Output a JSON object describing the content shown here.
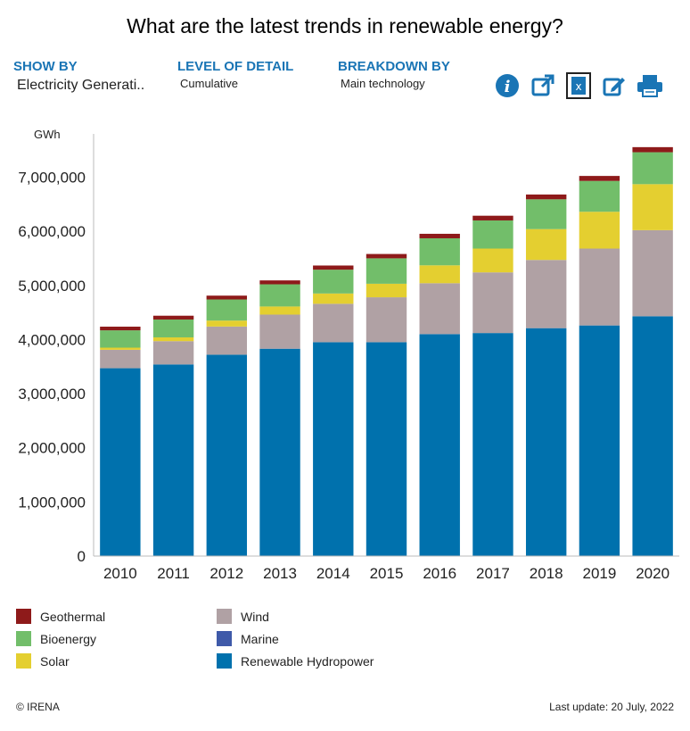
{
  "title": "What are the latest trends in renewable energy?",
  "filters": {
    "show_by": {
      "label": "SHOW BY",
      "value": "Electricity Generati.."
    },
    "level": {
      "label": "LEVEL OF DETAIL",
      "value": "Cumulative"
    },
    "breakdown": {
      "label": "BREAKDOWN BY",
      "value": "Main technology"
    }
  },
  "toolbar": {
    "icons": [
      "info-icon",
      "external-link-icon",
      "excel-icon",
      "edit-icon",
      "print-icon"
    ],
    "accent": "#1a75b5"
  },
  "chart_data": {
    "type": "bar",
    "stacked": true,
    "ylabel": "GWh",
    "ylim": [
      0,
      7800000
    ],
    "yticks": [
      0,
      1000000,
      2000000,
      3000000,
      4000000,
      5000000,
      6000000,
      7000000
    ],
    "ytick_labels": [
      "0",
      "1,000,000",
      "2,000,000",
      "3,000,000",
      "4,000,000",
      "5,000,000",
      "6,000,000",
      "7,000,000"
    ],
    "categories": [
      "2010",
      "2011",
      "2012",
      "2013",
      "2014",
      "2015",
      "2016",
      "2017",
      "2018",
      "2019",
      "2020"
    ],
    "series": [
      {
        "name": "Renewable Hydropower",
        "color": "#0071ad",
        "values": [
          3470000,
          3540000,
          3720000,
          3830000,
          3950000,
          3950000,
          4100000,
          4120000,
          4210000,
          4260000,
          4430000
        ]
      },
      {
        "name": "Marine",
        "color": "#3f5aa9",
        "values": [
          500,
          500,
          500,
          1000,
          1000,
          1000,
          1000,
          1000,
          1000,
          1000,
          1000
        ]
      },
      {
        "name": "Wind",
        "color": "#b0a1a4",
        "values": [
          340000,
          430000,
          520000,
          630000,
          710000,
          830000,
          940000,
          1120000,
          1260000,
          1420000,
          1590000
        ]
      },
      {
        "name": "Solar",
        "color": "#e4cf30",
        "values": [
          40000,
          70000,
          110000,
          150000,
          190000,
          250000,
          330000,
          440000,
          570000,
          680000,
          850000
        ]
      },
      {
        "name": "Bioenergy",
        "color": "#72be6a",
        "values": [
          320000,
          330000,
          390000,
          410000,
          440000,
          470000,
          500000,
          520000,
          550000,
          570000,
          590000
        ]
      },
      {
        "name": "Geothermal",
        "color": "#8e1a1a",
        "values": [
          68000,
          70000,
          71000,
          72000,
          77000,
          80000,
          83000,
          87000,
          89000,
          92000,
          94000
        ]
      }
    ],
    "legend": {
      "placement": "bottom",
      "left_column": [
        "Geothermal",
        "Bioenergy",
        "Solar"
      ],
      "right_column": [
        "Wind",
        "Marine",
        "Renewable Hydropower"
      ]
    }
  },
  "footer": {
    "copyright": "© IRENA",
    "last_update": "Last update: 20 July, 2022"
  }
}
